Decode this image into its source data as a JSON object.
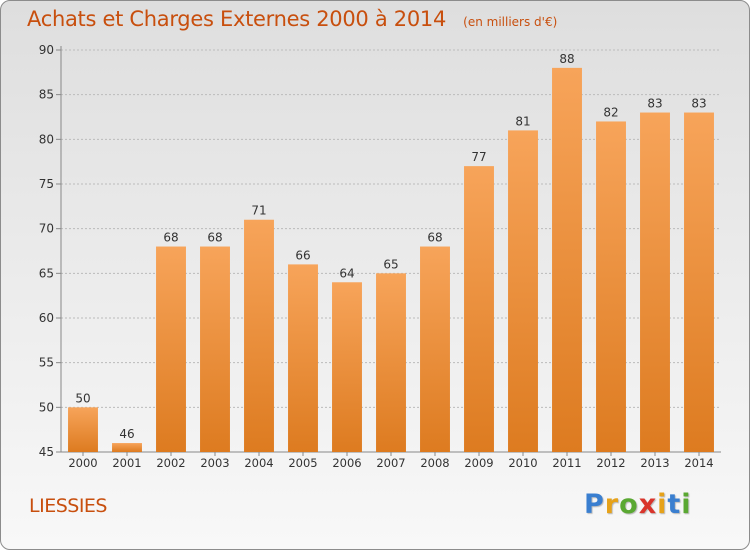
{
  "title": "Achats et Charges Externes 2000 à 2014",
  "unit_note": "(en milliers d'€)",
  "location": "LIESSIES",
  "logo": {
    "text": "Proxiti",
    "letters": [
      {
        "ch": "P",
        "color": "#3a7fd0"
      },
      {
        "ch": "r",
        "color": "#e6a21a"
      },
      {
        "ch": "o",
        "color": "#5aa832"
      },
      {
        "ch": "x",
        "color": "#d9342b"
      },
      {
        "ch": "i",
        "color": "#e6a21a"
      },
      {
        "ch": "t",
        "color": "#3a7fd0"
      },
      {
        "ch": "i",
        "color": "#5aa832"
      }
    ]
  },
  "colors": {
    "bar_top": "#f7a45a",
    "bar_bottom": "#dd7b20",
    "text": "#333333",
    "title": "#c84f0e",
    "grid": "#bbbbbb"
  },
  "chart_data": {
    "type": "bar",
    "categories": [
      "2000",
      "2001",
      "2002",
      "2003",
      "2004",
      "2005",
      "2006",
      "2007",
      "2008",
      "2009",
      "2010",
      "2011",
      "2012",
      "2013",
      "2014"
    ],
    "values": [
      50,
      46,
      68,
      68,
      71,
      66,
      64,
      65,
      68,
      77,
      81,
      88,
      82,
      83,
      83
    ],
    "ylim": [
      45,
      90
    ],
    "yticks": [
      45,
      50,
      55,
      60,
      65,
      70,
      75,
      80,
      85,
      90
    ],
    "grid": true,
    "data_labels": true
  }
}
